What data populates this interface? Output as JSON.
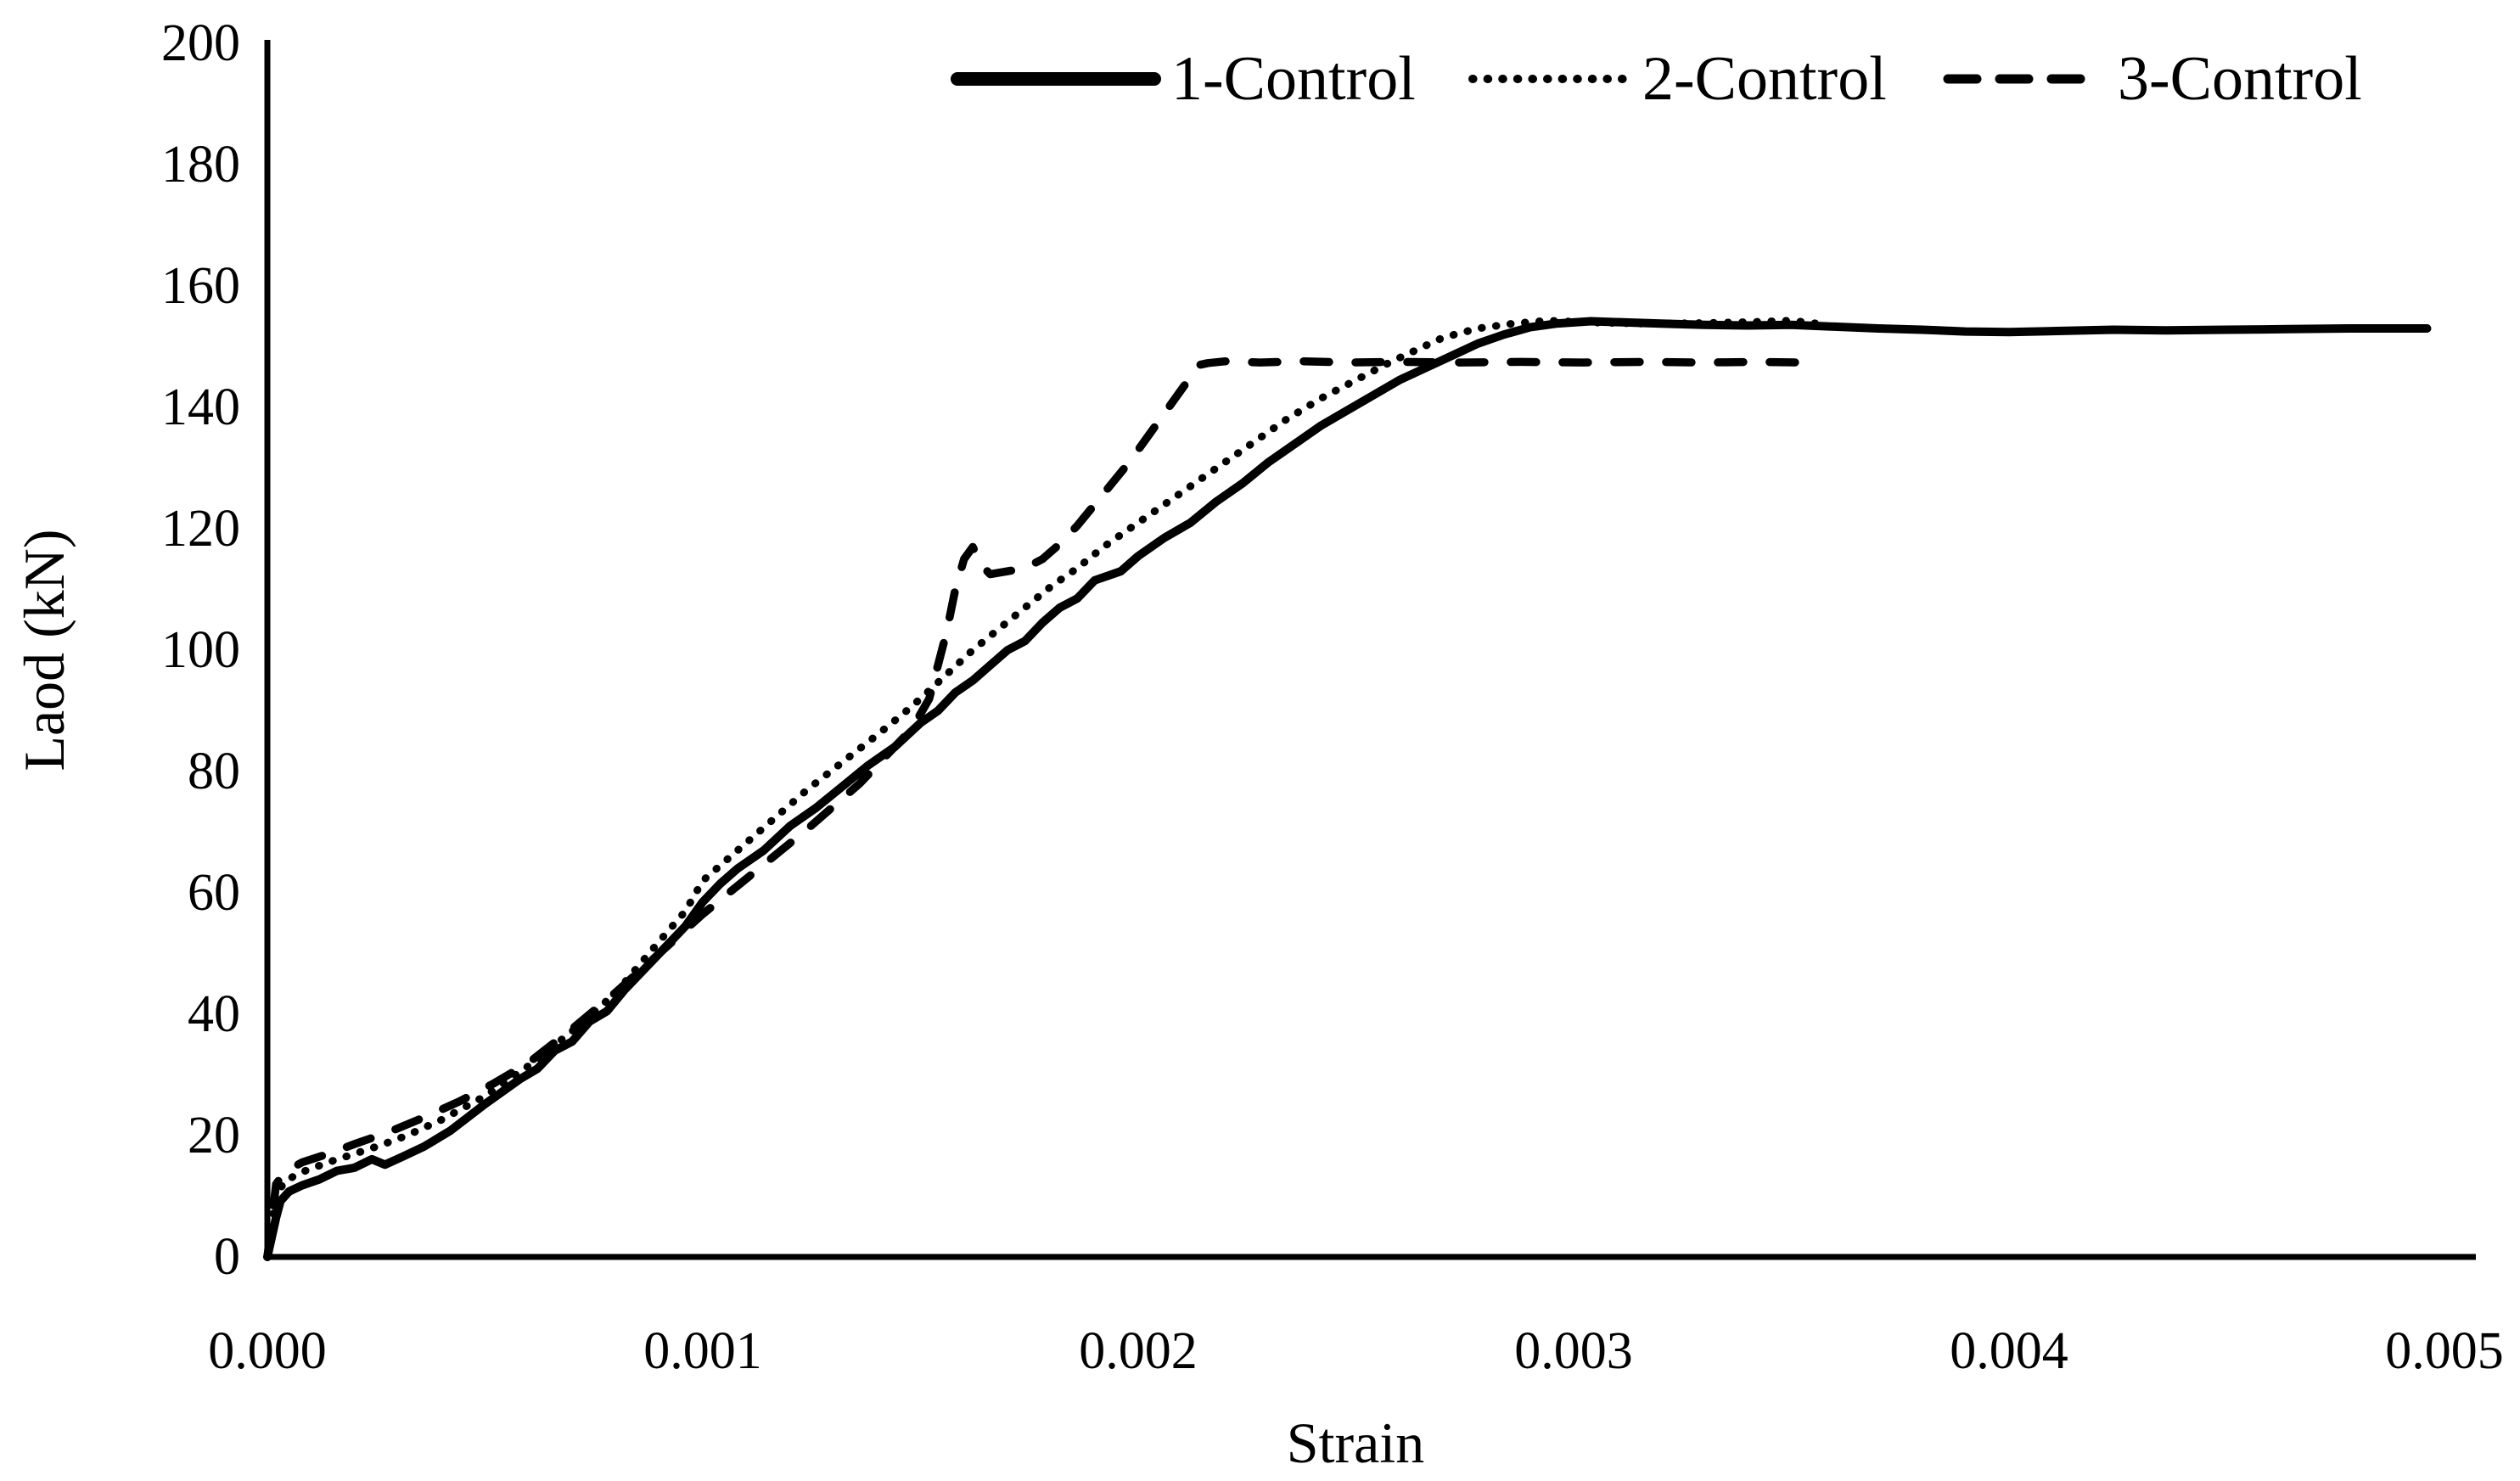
{
  "figure": {
    "background_color": "#ffffff",
    "line_color": "#000000"
  },
  "chart_data": {
    "type": "line",
    "title": "",
    "xlabel": "Strain",
    "ylabel": "Laod (kN)",
    "xlim": [
      0.0,
      0.005
    ],
    "ylim": [
      0,
      200
    ],
    "grid": false,
    "legend_position": "top",
    "x_ticks": [
      0.0,
      0.001,
      0.002,
      0.003,
      0.004,
      0.005
    ],
    "x_tick_labels": [
      "0.000",
      "0.001",
      "0.002",
      "0.003",
      "0.004",
      "0.005"
    ],
    "y_ticks": [
      0,
      20,
      40,
      60,
      80,
      100,
      120,
      140,
      160,
      180,
      200
    ],
    "line_color": "#000000",
    "series": [
      {
        "name": "1-Control",
        "line_style": "solid",
        "points": [
          [
            0.0,
            0
          ],
          [
            2e-05,
            6.5
          ],
          [
            3e-05,
            9.2
          ],
          [
            5e-05,
            10.8
          ],
          [
            8e-05,
            11.8
          ],
          [
            0.00012,
            12.8
          ],
          [
            0.00016,
            14.2
          ],
          [
            0.0002,
            14.7
          ],
          [
            0.00024,
            16.1
          ],
          [
            0.00027,
            15.2
          ],
          [
            0.00031,
            16.5
          ],
          [
            0.00036,
            18.2
          ],
          [
            0.00042,
            20.8
          ],
          [
            0.0005,
            25.2
          ],
          [
            0.00058,
            29.3
          ],
          [
            0.00062,
            31.0
          ],
          [
            0.00066,
            34.0
          ],
          [
            0.0007,
            35.5
          ],
          [
            0.00074,
            38.8
          ],
          [
            0.00078,
            40.5
          ],
          [
            0.00082,
            44.0
          ],
          [
            0.0009,
            50.0
          ],
          [
            0.00096,
            54.5
          ],
          [
            0.001,
            58.5
          ],
          [
            0.00104,
            61.5
          ],
          [
            0.00108,
            64.0
          ],
          [
            0.00114,
            67.0
          ],
          [
            0.0012,
            71.0
          ],
          [
            0.00126,
            74.0
          ],
          [
            0.00132,
            77.5
          ],
          [
            0.00138,
            81.0
          ],
          [
            0.00144,
            84.0
          ],
          [
            0.0015,
            88.0
          ],
          [
            0.00154,
            90.0
          ],
          [
            0.00158,
            93.0
          ],
          [
            0.00162,
            95.0
          ],
          [
            0.00166,
            97.5
          ],
          [
            0.0017,
            100.0
          ],
          [
            0.00174,
            101.5
          ],
          [
            0.00178,
            104.5
          ],
          [
            0.00182,
            107.0
          ],
          [
            0.00186,
            108.5
          ],
          [
            0.0019,
            111.5
          ],
          [
            0.00196,
            113.0
          ],
          [
            0.002,
            115.5
          ],
          [
            0.00206,
            118.5
          ],
          [
            0.00212,
            121.0
          ],
          [
            0.00218,
            124.5
          ],
          [
            0.00224,
            127.5
          ],
          [
            0.0023,
            131.0
          ],
          [
            0.00236,
            134.0
          ],
          [
            0.00242,
            137.0
          ],
          [
            0.00248,
            139.5
          ],
          [
            0.00254,
            142.0
          ],
          [
            0.0026,
            144.5
          ],
          [
            0.00266,
            146.5
          ],
          [
            0.00272,
            148.5
          ],
          [
            0.00278,
            150.5
          ],
          [
            0.00284,
            152.0
          ],
          [
            0.0029,
            153.2
          ],
          [
            0.00296,
            153.8
          ],
          [
            0.00304,
            154.2
          ],
          [
            0.00312,
            154.0
          ],
          [
            0.0032,
            153.8
          ],
          [
            0.0033,
            153.6
          ],
          [
            0.0034,
            153.5
          ],
          [
            0.0035,
            153.6
          ],
          [
            0.0036,
            153.3
          ],
          [
            0.0037,
            153.0
          ],
          [
            0.0038,
            152.8
          ],
          [
            0.0039,
            152.5
          ],
          [
            0.004,
            152.4
          ],
          [
            0.00412,
            152.6
          ],
          [
            0.00424,
            152.8
          ],
          [
            0.00436,
            152.7
          ],
          [
            0.0045,
            152.8
          ],
          [
            0.00464,
            152.9
          ],
          [
            0.00478,
            153.0
          ],
          [
            0.0049,
            153.0
          ],
          [
            0.00496,
            153.0
          ]
        ]
      },
      {
        "name": "2-Control",
        "line_style": "dotted",
        "points": [
          [
            0.0,
            0
          ],
          [
            2e-05,
            10.0
          ],
          [
            4e-05,
            12.5
          ],
          [
            8e-05,
            14.0
          ],
          [
            0.00014,
            15.6
          ],
          [
            0.0002,
            17.0
          ],
          [
            0.00026,
            18.4
          ],
          [
            0.00032,
            20.0
          ],
          [
            0.0004,
            22.6
          ],
          [
            0.0005,
            26.5
          ],
          [
            0.0006,
            31.5
          ],
          [
            0.0007,
            37.2
          ],
          [
            0.0008,
            43.5
          ],
          [
            0.0009,
            52.0
          ],
          [
            0.00096,
            57.0
          ],
          [
            0.001,
            62.0
          ],
          [
            0.00108,
            67.0
          ],
          [
            0.00116,
            72.0
          ],
          [
            0.00124,
            77.0
          ],
          [
            0.00132,
            81.5
          ],
          [
            0.0014,
            86.0
          ],
          [
            0.00146,
            89.5
          ],
          [
            0.0015,
            92.0
          ],
          [
            0.00156,
            96.0
          ],
          [
            0.00162,
            100.0
          ],
          [
            0.00168,
            103.5
          ],
          [
            0.00174,
            107.0
          ],
          [
            0.0018,
            110.5
          ],
          [
            0.00186,
            113.5
          ],
          [
            0.00192,
            117.0
          ],
          [
            0.00198,
            120.0
          ],
          [
            0.00204,
            123.0
          ],
          [
            0.0021,
            126.0
          ],
          [
            0.00218,
            130.0
          ],
          [
            0.00226,
            134.0
          ],
          [
            0.00234,
            138.0
          ],
          [
            0.00242,
            141.5
          ],
          [
            0.0025,
            144.5
          ],
          [
            0.00258,
            147.5
          ],
          [
            0.00264,
            149.5
          ],
          [
            0.0027,
            151.5
          ],
          [
            0.00278,
            153.0
          ],
          [
            0.00286,
            153.8
          ],
          [
            0.00294,
            154.3
          ],
          [
            0.00304,
            154.0
          ],
          [
            0.00316,
            153.8
          ],
          [
            0.0033,
            153.9
          ],
          [
            0.00342,
            154.1
          ],
          [
            0.0035,
            154.3
          ],
          [
            0.00356,
            153.8
          ]
        ]
      },
      {
        "name": "3-Control",
        "line_style": "dashed",
        "points": [
          [
            0.0,
            0
          ],
          [
            2e-05,
            12.0
          ],
          [
            4e-05,
            14.0
          ],
          [
            8e-05,
            15.6
          ],
          [
            0.00014,
            17.0
          ],
          [
            0.0002,
            18.6
          ],
          [
            0.00028,
            20.6
          ],
          [
            0.00036,
            23.0
          ],
          [
            0.00044,
            25.6
          ],
          [
            0.00052,
            28.6
          ],
          [
            0.0006,
            32.0
          ],
          [
            0.0007,
            37.6
          ],
          [
            0.0008,
            43.6
          ],
          [
            0.0009,
            50.0
          ],
          [
            0.001,
            56.5
          ],
          [
            0.00112,
            63.5
          ],
          [
            0.00124,
            70.5
          ],
          [
            0.00136,
            78.0
          ],
          [
            0.00148,
            87.0
          ],
          [
            0.00152,
            92.0
          ],
          [
            0.00156,
            103.0
          ],
          [
            0.00158,
            110.0
          ],
          [
            0.0016,
            115.0
          ],
          [
            0.00162,
            117.0
          ],
          [
            0.00164,
            114.0
          ],
          [
            0.00166,
            112.5
          ],
          [
            0.0017,
            113.0
          ],
          [
            0.00174,
            113.5
          ],
          [
            0.00178,
            115.0
          ],
          [
            0.00182,
            117.5
          ],
          [
            0.00186,
            120.5
          ],
          [
            0.0019,
            124.0
          ],
          [
            0.00194,
            127.5
          ],
          [
            0.00198,
            131.0
          ],
          [
            0.00202,
            135.0
          ],
          [
            0.00206,
            139.0
          ],
          [
            0.00209,
            142.0
          ],
          [
            0.00212,
            145.0
          ],
          [
            0.00214,
            147.0
          ],
          [
            0.00216,
            147.3
          ],
          [
            0.0022,
            147.6
          ],
          [
            0.00228,
            147.4
          ],
          [
            0.00238,
            147.6
          ],
          [
            0.00248,
            147.4
          ],
          [
            0.0026,
            147.5
          ],
          [
            0.00274,
            147.4
          ],
          [
            0.00288,
            147.5
          ],
          [
            0.00302,
            147.4
          ],
          [
            0.00316,
            147.5
          ],
          [
            0.0033,
            147.4
          ],
          [
            0.00342,
            147.5
          ],
          [
            0.00353,
            147.4
          ]
        ]
      }
    ]
  }
}
